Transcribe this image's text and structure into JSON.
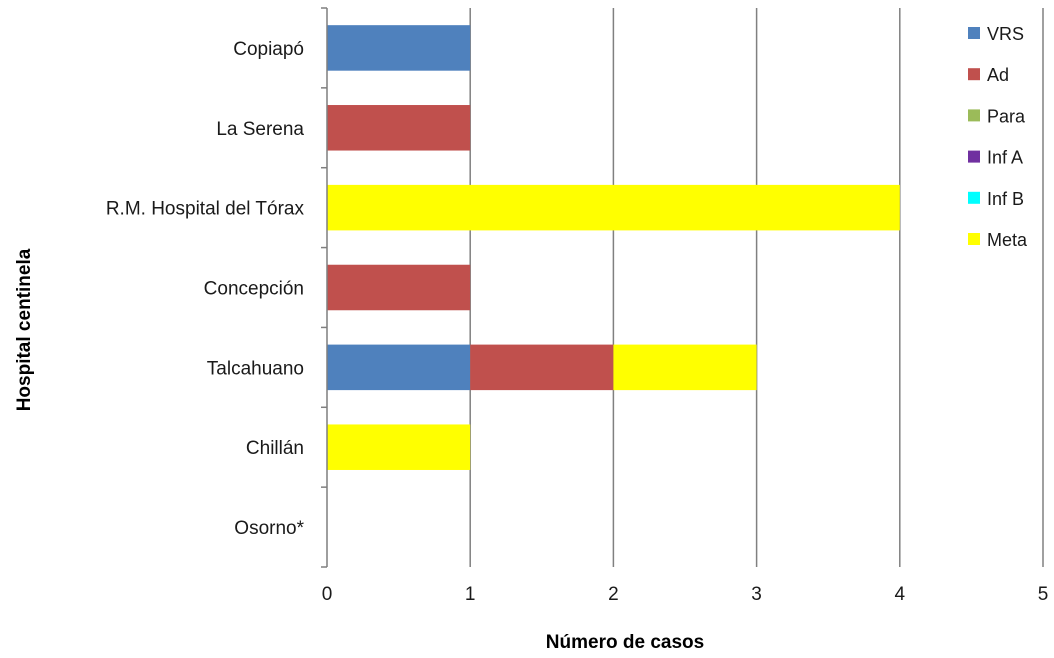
{
  "chart_data": {
    "type": "bar",
    "orientation": "horizontal",
    "stacked": true,
    "categories": [
      "Copiapó",
      "La Serena",
      "R.M. Hospital del Tórax",
      "Concepción",
      "Talcahuano",
      "Chillán",
      "Osorno*"
    ],
    "series": [
      {
        "name": "VRS",
        "color": "#4f81bd",
        "values": [
          1,
          0,
          0,
          0,
          1,
          0,
          0
        ]
      },
      {
        "name": "Ad",
        "color": "#c0504d",
        "values": [
          0,
          1,
          0,
          1,
          1,
          0,
          0
        ]
      },
      {
        "name": "Para",
        "color": "#9bbb59",
        "values": [
          0,
          0,
          0,
          0,
          0,
          0,
          0
        ]
      },
      {
        "name": "Inf A",
        "color": "#7030a0",
        "values": [
          0,
          0,
          0,
          0,
          0,
          0,
          0
        ]
      },
      {
        "name": "Inf B",
        "color": "#00ffff",
        "values": [
          0,
          0,
          0,
          0,
          0,
          0,
          0
        ]
      },
      {
        "name": "Meta",
        "color": "#ffff00",
        "values": [
          0,
          0,
          4,
          0,
          1,
          1,
          0
        ]
      }
    ],
    "xlabel": "Número de casos",
    "ylabel": "Hospital centinela",
    "xlim": [
      0,
      5
    ],
    "xticks": [
      "0",
      "1",
      "2",
      "3",
      "4",
      "5"
    ],
    "grid": "vertical",
    "legend": "right"
  }
}
